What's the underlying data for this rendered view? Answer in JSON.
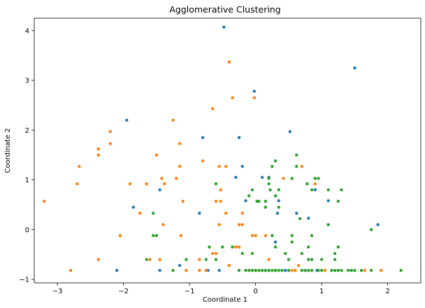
{
  "chart_data": {
    "type": "scatter",
    "title": "Agglomerative Clustering",
    "xlabel": "Coordinate 1",
    "ylabel": "Coordinate 2",
    "xlim": [
      -3.35,
      2.5
    ],
    "ylim": [
      -1.07,
      4.25
    ],
    "xticks": [
      -3,
      -2,
      -1,
      0,
      1,
      2
    ],
    "yticks": [
      -1,
      0,
      1,
      2,
      3,
      4
    ],
    "grid": false,
    "legend": "none",
    "series": [
      {
        "color": "#1f77b4",
        "points": [
          [
            -0.48,
            4.07
          ],
          [
            1.5,
            3.25
          ],
          [
            -0.02,
            2.78
          ],
          [
            0.52,
            1.97
          ],
          [
            -1.95,
            2.2
          ],
          [
            -0.8,
            1.85
          ],
          [
            -0.25,
            1.85
          ],
          [
            -0.2,
            1.27
          ],
          [
            0.1,
            1.05
          ],
          [
            0.2,
            1.05
          ],
          [
            -0.3,
            1.05
          ],
          [
            -1.45,
            0.8
          ],
          [
            0.35,
            0.58
          ],
          [
            -0.15,
            0.58
          ],
          [
            1.1,
            0.58
          ],
          [
            -1.85,
            0.45
          ],
          [
            -0.85,
            0.33
          ],
          [
            0.33,
            0.33
          ],
          [
            0.62,
            0.33
          ],
          [
            1.1,
            0.1
          ],
          [
            1.85,
            0.1
          ],
          [
            0.8,
            0.23
          ],
          [
            0.3,
            -0.25
          ],
          [
            -1.15,
            -0.72
          ],
          [
            -2.1,
            -0.82
          ],
          [
            -1.45,
            -0.82
          ],
          [
            -0.72,
            -0.82
          ],
          [
            -0.55,
            -0.82
          ],
          [
            0.45,
            -0.82
          ],
          [
            0.93,
            -0.82
          ],
          [
            0.9,
            0.8
          ]
        ]
      },
      {
        "color": "#ff7f0e",
        "points": [
          [
            -0.4,
            3.37
          ],
          [
            -0.35,
            2.65
          ],
          [
            -0.02,
            2.65
          ],
          [
            -0.65,
            2.43
          ],
          [
            -1.25,
            2.2
          ],
          [
            -2.2,
            1.97
          ],
          [
            -2.2,
            1.73
          ],
          [
            -2.38,
            1.62
          ],
          [
            -2.38,
            1.5
          ],
          [
            -1.5,
            1.5
          ],
          [
            -1.15,
            1.73
          ],
          [
            -2.67,
            1.27
          ],
          [
            -1.15,
            1.27
          ],
          [
            -0.8,
            1.38
          ],
          [
            -0.55,
            1.27
          ],
          [
            -0.45,
            1.27
          ],
          [
            -1.42,
            1.03
          ],
          [
            -1.2,
            1.03
          ],
          [
            -2.7,
            0.92
          ],
          [
            -1.9,
            0.92
          ],
          [
            -1.65,
            0.92
          ],
          [
            -1.38,
            0.92
          ],
          [
            -3.2,
            0.57
          ],
          [
            -1.1,
            0.57
          ],
          [
            -0.6,
            0.57
          ],
          [
            -0.53,
            0.57
          ],
          [
            -0.53,
            0.8
          ],
          [
            -1.75,
            0.33
          ],
          [
            -0.45,
            0.33
          ],
          [
            -0.2,
            0.33
          ],
          [
            -1.4,
            0.1
          ],
          [
            -0.55,
            0.1
          ],
          [
            -0.25,
            0.1
          ],
          [
            -0.2,
            0.1
          ],
          [
            -2.05,
            -0.12
          ],
          [
            -1.5,
            -0.12
          ],
          [
            -1.13,
            -0.12
          ],
          [
            -0.05,
            -0.12
          ],
          [
            0.0,
            -0.12
          ],
          [
            0.15,
            -0.12
          ],
          [
            -0.6,
            -0.48
          ],
          [
            -0.65,
            -0.48
          ],
          [
            -0.3,
            -0.35
          ],
          [
            -0.25,
            -0.35
          ],
          [
            -2.38,
            -0.6
          ],
          [
            -1.6,
            -0.6
          ],
          [
            -1.45,
            -0.6
          ],
          [
            -0.85,
            -0.6
          ],
          [
            -0.4,
            -0.72
          ],
          [
            0.2,
            -0.6
          ],
          [
            0.65,
            -0.72
          ],
          [
            0.42,
            1.03
          ],
          [
            0.7,
            1.27
          ],
          [
            -2.8,
            -0.82
          ],
          [
            -1.05,
            -0.82
          ],
          [
            -0.85,
            -0.82
          ],
          [
            -0.75,
            -0.82
          ],
          [
            0.3,
            -0.82
          ],
          [
            0.55,
            -0.82
          ],
          [
            0.6,
            -0.82
          ],
          [
            1.05,
            -0.82
          ],
          [
            1.65,
            -0.82
          ],
          [
            1.9,
            -0.82
          ],
          [
            0.0,
            -0.82
          ],
          [
            0.9,
            0.92
          ]
        ]
      },
      {
        "color": "#2ca02c",
        "points": [
          [
            0.62,
            1.5
          ],
          [
            0.3,
            1.38
          ],
          [
            0.25,
            1.27
          ],
          [
            0.62,
            1.27
          ],
          [
            0.2,
            1.03
          ],
          [
            0.55,
            1.03
          ],
          [
            0.9,
            1.03
          ],
          [
            0.95,
            1.03
          ],
          [
            -0.6,
            0.92
          ],
          [
            0.02,
            0.57
          ],
          [
            0.2,
            0.92
          ],
          [
            0.78,
            0.92
          ],
          [
            -0.05,
            0.8
          ],
          [
            0.22,
            0.8
          ],
          [
            0.35,
            0.8
          ],
          [
            0.85,
            0.8
          ],
          [
            1.1,
            0.8
          ],
          [
            1.3,
            0.8
          ],
          [
            -0.1,
            0.68
          ],
          [
            0.3,
            0.68
          ],
          [
            0.05,
            0.57
          ],
          [
            0.15,
            0.57
          ],
          [
            1.25,
            0.57
          ],
          [
            -1.55,
            0.33
          ],
          [
            0.15,
            0.45
          ],
          [
            0.35,
            0.45
          ],
          [
            0.67,
            0.22
          ],
          [
            1.1,
            0.1
          ],
          [
            -1.55,
            -0.12
          ],
          [
            -1.5,
            -0.12
          ],
          [
            0.25,
            -0.12
          ],
          [
            0.55,
            -0.12
          ],
          [
            0.85,
            -0.12
          ],
          [
            0.3,
            -0.35
          ],
          [
            0.55,
            -0.25
          ],
          [
            0.8,
            -0.35
          ],
          [
            1.25,
            -0.35
          ],
          [
            -0.7,
            -0.35
          ],
          [
            -0.5,
            -0.35
          ],
          [
            -0.35,
            -0.35
          ],
          [
            -0.2,
            -0.48
          ],
          [
            -0.05,
            -0.48
          ],
          [
            0.45,
            -0.48
          ],
          [
            0.7,
            -0.48
          ],
          [
            1.2,
            -0.48
          ],
          [
            -1.65,
            -0.6
          ],
          [
            -1.05,
            -0.6
          ],
          [
            -0.75,
            -0.6
          ],
          [
            -0.6,
            -0.6
          ],
          [
            0.5,
            -0.6
          ],
          [
            0.8,
            -0.6
          ],
          [
            0.85,
            -0.6
          ],
          [
            1.0,
            -0.6
          ],
          [
            1.2,
            -0.6
          ],
          [
            1.75,
            0.0
          ],
          [
            -1.25,
            -0.82
          ],
          [
            -0.25,
            -0.82
          ],
          [
            -0.15,
            -0.82
          ],
          [
            -0.1,
            -0.82
          ],
          [
            -0.05,
            -0.82
          ],
          [
            0.0,
            -0.82
          ],
          [
            0.05,
            -0.82
          ],
          [
            0.1,
            -0.82
          ],
          [
            0.15,
            -0.82
          ],
          [
            0.2,
            -0.82
          ],
          [
            0.25,
            -0.82
          ],
          [
            0.3,
            -0.82
          ],
          [
            0.35,
            -0.82
          ],
          [
            0.4,
            -0.82
          ],
          [
            0.5,
            -0.82
          ],
          [
            0.7,
            -0.82
          ],
          [
            0.75,
            -0.82
          ],
          [
            0.8,
            -0.82
          ],
          [
            0.85,
            -0.82
          ],
          [
            0.95,
            -0.82
          ],
          [
            1.0,
            -0.82
          ],
          [
            1.15,
            -0.82
          ],
          [
            1.2,
            -0.82
          ],
          [
            1.25,
            -0.82
          ],
          [
            1.3,
            -0.82
          ],
          [
            1.4,
            -0.82
          ],
          [
            1.45,
            -0.82
          ],
          [
            1.5,
            -0.82
          ],
          [
            1.6,
            -0.82
          ],
          [
            1.75,
            -0.82
          ],
          [
            2.2,
            -0.82
          ]
        ]
      }
    ]
  }
}
